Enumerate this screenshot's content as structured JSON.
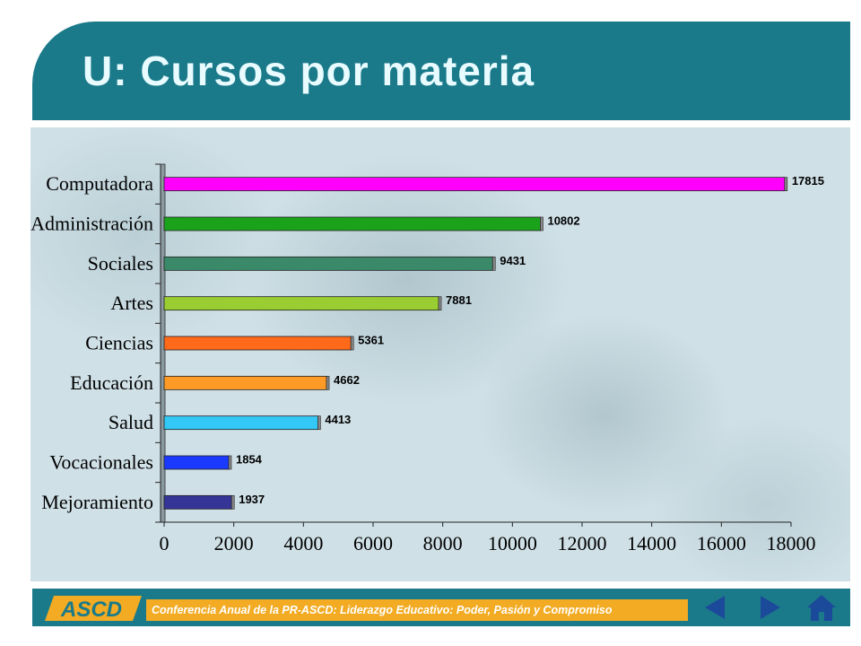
{
  "slide": {
    "title": "U: Cursos por materia"
  },
  "footer": {
    "text": "Conferencia Anual de la PR-ASCD: Liderazgo Educativo: Poder, Pasión y Compromiso",
    "logo_text": "ASCD"
  },
  "nav": {
    "prev_icon": "left-arrow-icon",
    "next_icon": "right-arrow-icon",
    "home_icon": "home-icon"
  },
  "colors": {
    "header": "#1b7a8a",
    "footer_band": "#f2ab22",
    "panel": "#cfe0e6"
  },
  "chart_data": {
    "type": "bar",
    "orientation": "horizontal",
    "categories": [
      "Computadora",
      "Administración",
      "Sociales",
      "Artes",
      "Ciencias",
      "Educación",
      "Salud",
      "Vocacionales",
      "Mejoramiento"
    ],
    "values": [
      17815,
      10802,
      9431,
      7881,
      5361,
      4662,
      4413,
      1854,
      1937
    ],
    "colors": [
      "#ff00ff",
      "#1aa31a",
      "#3a8a6a",
      "#9acd32",
      "#ff6a1a",
      "#ff9a26",
      "#33c8f5",
      "#1a3aff",
      "#353597"
    ],
    "xlim": [
      0,
      18000
    ],
    "xticks": [
      "0",
      "2000",
      "4000",
      "6000",
      "8000",
      "10000",
      "12000",
      "14000",
      "16000",
      "18000"
    ],
    "data_labels": [
      "17815",
      "10802",
      "9431",
      "7881",
      "5361",
      "4662",
      "4413",
      "1854",
      "1937"
    ],
    "grid": false,
    "legend": "none"
  }
}
